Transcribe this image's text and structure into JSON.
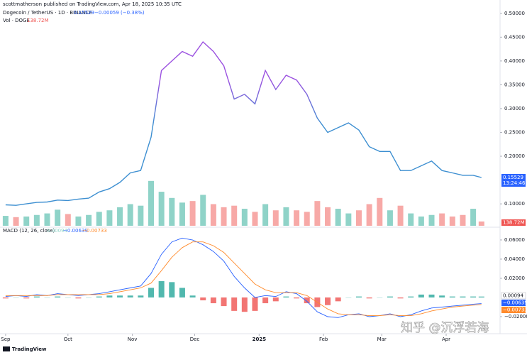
{
  "chart_data": [
    {
      "type": "line",
      "attribution": "scottmatherson published on TradingView.com, Apr 18, 2025 10:35 UTC",
      "price_label": "0.15529",
      "change_label": "−0.00059 (−0.38%)",
      "volume_label": "138.72M",
      "countdown": "13:24:46",
      "x": [
        0,
        5,
        10,
        15,
        20,
        25,
        30,
        35,
        40,
        45,
        50,
        55,
        60,
        65,
        70,
        75,
        80,
        85,
        90,
        95,
        100,
        105,
        110,
        115,
        120,
        125,
        130,
        135,
        140,
        145,
        150,
        155,
        160,
        165,
        170,
        175,
        180,
        185,
        190,
        195,
        200,
        205,
        210,
        215,
        220,
        225,
        229
      ],
      "xlim": [
        -2.7,
        235.2
      ],
      "ylim": [
        0.054,
        0.528
      ],
      "yticks": [
        {
          "value": 0.5,
          "label": "0.50000"
        },
        {
          "value": 0.45,
          "label": "0.45000"
        },
        {
          "value": 0.4,
          "label": "0.40000"
        },
        {
          "value": 0.35,
          "label": "0.35000"
        },
        {
          "value": 0.3,
          "label": "0.30000"
        },
        {
          "value": 0.25,
          "label": "0.25000"
        },
        {
          "value": 0.2,
          "label": "0.20000"
        },
        {
          "value": 0.1,
          "label": "0.10000"
        }
      ],
      "y2lim": [
        0,
        7300
      ],
      "series": [
        {
          "name": "Dogecoin / TetherUS · 1D · BINANCE",
          "colors": [
            "#9b51e0",
            "#3d8fd1"
          ],
          "values": [
            0.098,
            0.097,
            0.1,
            0.103,
            0.104,
            0.108,
            0.107,
            0.11,
            0.112,
            0.125,
            0.132,
            0.145,
            0.165,
            0.17,
            0.24,
            0.38,
            0.4,
            0.42,
            0.41,
            0.44,
            0.42,
            0.39,
            0.32,
            0.33,
            0.31,
            0.38,
            0.34,
            0.37,
            0.36,
            0.33,
            0.28,
            0.25,
            0.26,
            0.27,
            0.255,
            0.22,
            0.21,
            0.21,
            0.17,
            0.17,
            0.18,
            0.19,
            0.17,
            0.165,
            0.16,
            0.16,
            0.15529
          ]
        },
        {
          "name": "Vol · DOGE",
          "axis": "y2",
          "up_color": "#8fd3c8",
          "down_color": "#f7a9a7",
          "values": [
            320,
            280,
            300,
            350,
            400,
            520,
            380,
            300,
            350,
            450,
            500,
            600,
            700,
            650,
            1450,
            1100,
            900,
            750,
            800,
            1000,
            700,
            600,
            650,
            550,
            450,
            700,
            500,
            600,
            500,
            450,
            800,
            600,
            550,
            400,
            500,
            700,
            900,
            500,
            650,
            400,
            300,
            350,
            400,
            300,
            350,
            550,
            138.72
          ]
        }
      ]
    },
    {
      "type": "macd",
      "title": "MACD (12, 26, close)",
      "legend_labels": [
        "0.00094",
        "−0.00639",
        "−0.00733"
      ],
      "x": [
        0,
        5,
        10,
        15,
        20,
        25,
        30,
        35,
        40,
        45,
        50,
        55,
        60,
        65,
        70,
        75,
        80,
        85,
        90,
        95,
        100,
        105,
        110,
        115,
        120,
        125,
        130,
        135,
        140,
        145,
        150,
        155,
        160,
        165,
        170,
        175,
        180,
        185,
        190,
        195,
        200,
        205,
        210,
        215,
        220,
        225,
        229
      ],
      "xlim": [
        -2.7,
        235.2
      ],
      "xticks": [
        {
          "value": 0,
          "label": "Sep"
        },
        {
          "value": 30,
          "label": "Oct"
        },
        {
          "value": 61,
          "label": "Nov"
        },
        {
          "value": 91,
          "label": "Dec"
        },
        {
          "value": 122,
          "label": "2025"
        },
        {
          "value": 153,
          "label": "Feb"
        },
        {
          "value": 181,
          "label": "Mar"
        },
        {
          "value": 212,
          "label": "Apr"
        }
      ],
      "ylim": [
        -0.0267,
        0.0733
      ],
      "yticks": [
        {
          "value": 0.06,
          "label": "0.06000"
        },
        {
          "value": 0.04,
          "label": "0.04000"
        },
        {
          "value": 0.02,
          "label": "0.02000"
        },
        {
          "value": -0.02,
          "label": "−0.02000"
        }
      ],
      "series": [
        {
          "name": "Histogram",
          "up_color": "#26a69a",
          "down_color": "#ef5350",
          "values": [
            -0.001,
            0,
            -0.001,
            0.001,
            0,
            0.001,
            0,
            -0.001,
            0,
            0.001,
            0.002,
            0.002,
            0.002,
            0.002,
            0.01,
            0.017,
            0.016,
            0.01,
            0.002,
            -0.003,
            -0.006,
            -0.009,
            -0.014,
            -0.015,
            -0.014,
            -0.006,
            -0.004,
            0.001,
            -0.001,
            -0.006,
            -0.01,
            -0.008,
            -0.004,
            0,
            0.001,
            -0.001,
            0,
            0.001,
            -0.001,
            0.001,
            0.003,
            0.003,
            0.002,
            0.001,
            0.001,
            0.001,
            0.00094
          ]
        },
        {
          "name": "MACD",
          "color": "#2962ff",
          "values": [
            0.001,
            0.002,
            0.001,
            0.003,
            0.002,
            0.004,
            0.003,
            0.002,
            0.003,
            0.004,
            0.006,
            0.008,
            0.01,
            0.012,
            0.025,
            0.045,
            0.058,
            0.062,
            0.06,
            0.055,
            0.048,
            0.038,
            0.022,
            0.01,
            0.0,
            0.002,
            0.001,
            0.006,
            0.004,
            -0.004,
            -0.015,
            -0.02,
            -0.021,
            -0.018,
            -0.017,
            -0.02,
            -0.019,
            -0.017,
            -0.02,
            -0.018,
            -0.014,
            -0.011,
            -0.01,
            -0.009,
            -0.008,
            -0.007,
            -0.00639
          ]
        },
        {
          "name": "Signal",
          "color": "#ff8a2b",
          "values": [
            0.002,
            0.002,
            0.002,
            0.002,
            0.002,
            0.003,
            0.003,
            0.003,
            0.003,
            0.003,
            0.004,
            0.006,
            0.008,
            0.01,
            0.015,
            0.028,
            0.042,
            0.052,
            0.058,
            0.058,
            0.054,
            0.047,
            0.036,
            0.025,
            0.014,
            0.008,
            0.005,
            0.005,
            0.005,
            0.002,
            -0.005,
            -0.012,
            -0.017,
            -0.018,
            -0.018,
            -0.019,
            -0.019,
            -0.018,
            -0.019,
            -0.019,
            -0.017,
            -0.014,
            -0.012,
            -0.01,
            -0.009,
            -0.008,
            -0.00733
          ]
        }
      ]
    }
  ],
  "watermark": "知乎 @沉浮若海",
  "footer": "TradingView"
}
